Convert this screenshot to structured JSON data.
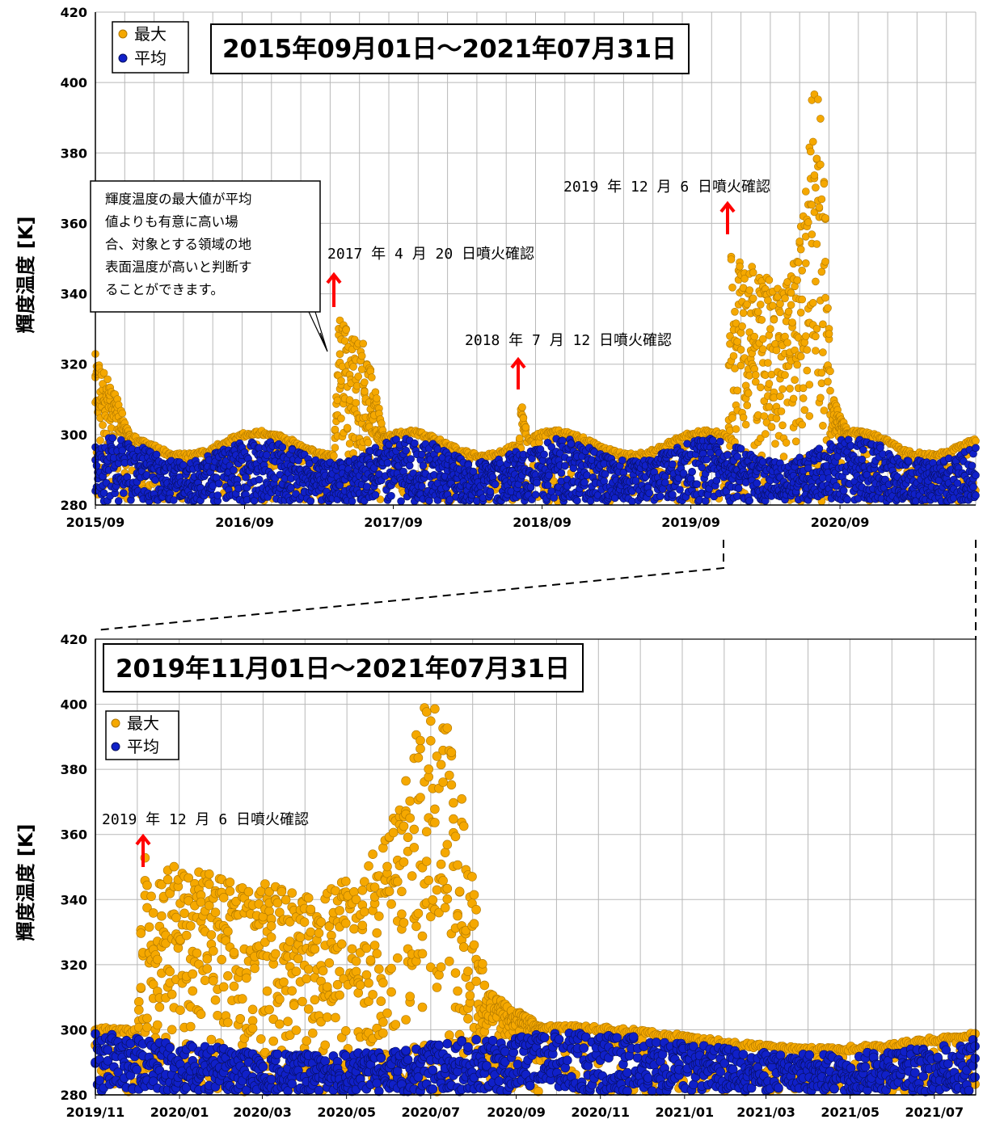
{
  "chart_data": [
    {
      "type": "scatter",
      "title": "2015年09月01日～2021年07月31日",
      "ylabel": "輝度温度 [K]",
      "xlabel": "",
      "ylim": [
        280,
        420
      ],
      "yticks": [
        280,
        300,
        320,
        340,
        360,
        380,
        400,
        420
      ],
      "xlim": [
        "2015-09-01",
        "2021-07-31"
      ],
      "xticks": [
        {
          "date": "2015-09-01",
          "label": "2015/09"
        },
        {
          "date": "2016-09-01",
          "label": "2016/09"
        },
        {
          "date": "2017-09-01",
          "label": "2017/09"
        },
        {
          "date": "2018-09-01",
          "label": "2018/09"
        },
        {
          "date": "2019-09-01",
          "label": "2019/09"
        },
        {
          "date": "2020-09-01",
          "label": "2020/09"
        }
      ],
      "grid": true,
      "legend_position": "top-left",
      "series": [
        {
          "name": "最大",
          "color": "#f5a800",
          "values_per_day": {
            "approx_max": [
              [
                "2015-09-01",
                320
              ],
              [
                "2015-10-15",
                305
              ],
              [
                "2015-12-01",
                295
              ],
              [
                "2016-03-01",
                292
              ],
              [
                "2016-06-01",
                297
              ],
              [
                "2016-09-01",
                300
              ],
              [
                "2017-01-01",
                293
              ],
              [
                "2017-04-20",
                335
              ],
              [
                "2017-06-01",
                325
              ],
              [
                "2017-08-01",
                301
              ],
              [
                "2018-01-01",
                292
              ],
              [
                "2018-07-12",
                310
              ],
              [
                "2018-09-01",
                300
              ],
              [
                "2019-02-01",
                292
              ],
              [
                "2019-09-01",
                299
              ],
              [
                "2019-12-06",
                353
              ],
              [
                "2020-03-01",
                340
              ],
              [
                "2020-06-01",
                352
              ],
              [
                "2020-07-01",
                400
              ],
              [
                "2020-08-01",
                320
              ],
              [
                "2020-09-01",
                303
              ],
              [
                "2021-01-01",
                293
              ],
              [
                "2021-07-15",
                301
              ]
            ]
          }
        },
        {
          "name": "平均",
          "color": "#1020c8",
          "values_per_day": {
            "approx_range": [
              281,
              299
            ]
          }
        }
      ],
      "annotations": [
        {
          "date": "2017-04-20",
          "text": "2017 年 4 月 20 日噴火確認"
        },
        {
          "date": "2018-07-12",
          "text": "2018 年 7 月 12 日噴火確認"
        },
        {
          "date": "2019-12-06",
          "text": "2019 年 12 月 6 日噴火確認"
        }
      ],
      "callout": {
        "lines": [
          "輝度温度の最大値が平均",
          "値よりも有意に高い場",
          "合、対象とする領域の地",
          "表面温度が高いと判断す",
          "ることができます。"
        ]
      }
    },
    {
      "type": "scatter",
      "title": "2019年11月01日～2021年07月31日",
      "ylabel": "輝度温度 [K]",
      "xlabel": "",
      "ylim": [
        280,
        420
      ],
      "yticks": [
        280,
        300,
        320,
        340,
        360,
        380,
        400,
        420
      ],
      "xlim": [
        "2019-11-01",
        "2021-07-31"
      ],
      "xticks": [
        {
          "date": "2019-11-01",
          "label": "2019/11"
        },
        {
          "date": "2020-01-01",
          "label": "2020/01"
        },
        {
          "date": "2020-03-01",
          "label": "2020/03"
        },
        {
          "date": "2020-05-01",
          "label": "2020/05"
        },
        {
          "date": "2020-07-01",
          "label": "2020/07"
        },
        {
          "date": "2020-09-01",
          "label": "2020/09"
        },
        {
          "date": "2020-11-01",
          "label": "2020/11"
        },
        {
          "date": "2021-01-01",
          "label": "2021/01"
        },
        {
          "date": "2021-03-01",
          "label": "2021/03"
        },
        {
          "date": "2021-05-01",
          "label": "2021/05"
        },
        {
          "date": "2021-07-01",
          "label": "2021/07"
        }
      ],
      "grid": true,
      "legend_position": "top-left",
      "series": [
        {
          "name": "最大",
          "color": "#f5a800"
        },
        {
          "name": "平均",
          "color": "#1020c8"
        }
      ],
      "annotations": [
        {
          "date": "2019-12-06",
          "text": "2019 年 12 月 6 日噴火確認"
        }
      ]
    }
  ],
  "colors": {
    "max": "#f5a800",
    "max_edge": "#b07800",
    "avg": "#1020c8",
    "avg_edge": "#081060",
    "arrow": "#ff0000",
    "grid": "#b8b8b8"
  }
}
